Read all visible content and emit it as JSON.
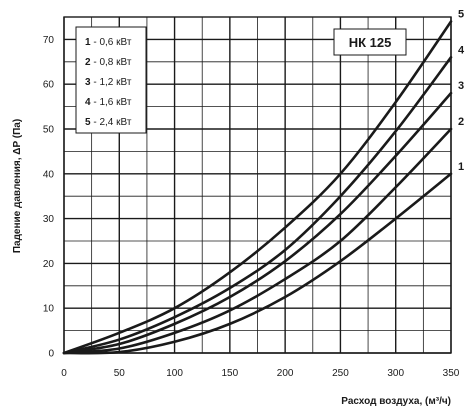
{
  "chart_data": {
    "type": "line",
    "title": "НК 125",
    "xlabel": "Расход воздуха, (м³/ч)",
    "ylabel": "Падение давления, ΔP (Па)",
    "xlim": [
      0,
      350
    ],
    "ylim": [
      0,
      75
    ],
    "x_ticks": [
      0,
      50,
      100,
      150,
      200,
      250,
      300,
      350
    ],
    "y_ticks": [
      0,
      10,
      20,
      30,
      40,
      50,
      60,
      70
    ],
    "grid": true,
    "legend_position": "top-left",
    "legend": [
      {
        "num": "1",
        "text": "- 0,6 кВт"
      },
      {
        "num": "2",
        "text": "- 0,8 кВт"
      },
      {
        "num": "3",
        "text": "- 1,2 кВт"
      },
      {
        "num": "4",
        "text": "- 1,6 кВт"
      },
      {
        "num": "5",
        "text": "- 2,4 кВт"
      }
    ],
    "series": [
      {
        "name": "1",
        "x": [
          0,
          50,
          100,
          150,
          200,
          250,
          300,
          350
        ],
        "y": [
          0,
          0.2,
          2.5,
          6.5,
          12.5,
          20.5,
          30,
          40
        ]
      },
      {
        "name": "2",
        "x": [
          0,
          50,
          100,
          150,
          200,
          250,
          300,
          350
        ],
        "y": [
          0,
          1,
          4.5,
          9.5,
          16.5,
          25,
          37,
          50
        ]
      },
      {
        "name": "3",
        "x": [
          0,
          50,
          100,
          150,
          200,
          250,
          300,
          350
        ],
        "y": [
          0,
          2,
          6.5,
          12.5,
          20.5,
          31,
          44,
          58
        ]
      },
      {
        "name": "4",
        "x": [
          0,
          50,
          100,
          150,
          200,
          250,
          300,
          350
        ],
        "y": [
          0,
          3,
          8,
          14.5,
          23,
          35,
          49.5,
          66
        ]
      },
      {
        "name": "5",
        "x": [
          0,
          50,
          100,
          150,
          200,
          250,
          300,
          350
        ],
        "y": [
          0,
          4.5,
          10,
          18,
          28,
          40,
          56,
          74
        ]
      }
    ]
  },
  "colors": {
    "curve": "#1a1a1a",
    "grid": "#1a1a1a",
    "background": "#ffffff"
  }
}
